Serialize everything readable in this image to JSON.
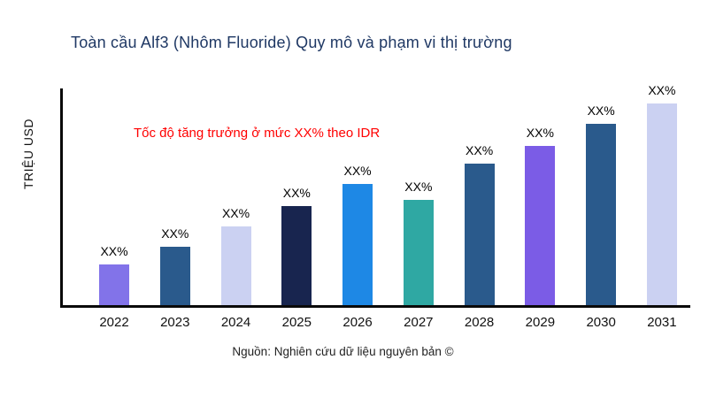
{
  "chart_data": {
    "type": "bar",
    "title": "Toàn cầu Alf3 (Nhôm Fluoride) Quy mô và phạm vi thị trường",
    "ylabel": "TRIỆU USD",
    "xlabel": "",
    "annotation": "Tốc độ tăng trưởng ở mức XX% theo IDR",
    "source": "Nguồn: Nghiên cứu dữ liệu nguyên bản ©",
    "categories": [
      "2022",
      "2023",
      "2024",
      "2025",
      "2026",
      "2027",
      "2028",
      "2029",
      "2030",
      "2031"
    ],
    "values": [
      20,
      29,
      39,
      49,
      60,
      52,
      70,
      79,
      90,
      100
    ],
    "bar_labels": [
      "XX%",
      "XX%",
      "XX%",
      "XX%",
      "XX%",
      "XX%",
      "XX%",
      "XX%",
      "XX%",
      "XX%"
    ],
    "bar_colors": [
      "#8273E9",
      "#2A5A8C",
      "#CBD1F2",
      "#18254F",
      "#1E88E5",
      "#2FA8A3",
      "#2A5A8C",
      "#7B5CE6",
      "#2A5A8C",
      "#CBD1F2"
    ],
    "ylim": [
      0,
      100
    ],
    "grid": false,
    "legend": false
  },
  "colors": {
    "title": "#1F3864",
    "annotation": "#FF0000",
    "axis": "#0a0a0a"
  }
}
